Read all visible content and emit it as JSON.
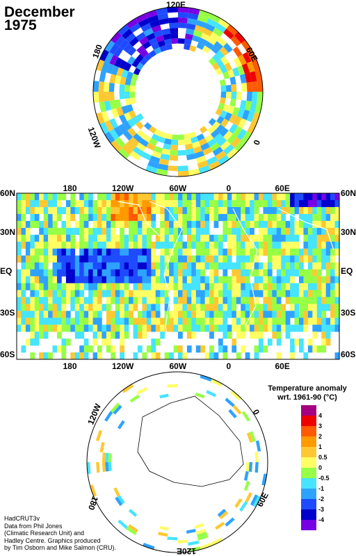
{
  "title": {
    "line1": "December",
    "line2": "1975"
  },
  "north_polar": {
    "labels": [
      "120E",
      "60E",
      "0",
      "120W",
      "180"
    ]
  },
  "equirect": {
    "top_lon_labels": [
      "180",
      "120W",
      "60W",
      "0",
      "60E"
    ],
    "bottom_lon_labels": [
      "180",
      "120W",
      "60W",
      "0",
      "60E"
    ],
    "left_lat_labels": [
      "60N",
      "30N",
      "EQ",
      "30S",
      "60S"
    ],
    "right_lat_labels": [
      "60N",
      "30N",
      "EQ",
      "30S",
      "60S"
    ]
  },
  "south_polar": {
    "labels": [
      "120W",
      "0",
      "60E",
      "120E",
      "180"
    ]
  },
  "legend": {
    "title_line1": "Temperature anomaly",
    "title_line2": "wrt. 1961-90  (°C)",
    "colors": [
      "#a5007f",
      "#ef0000",
      "#ff5a00",
      "#ff9a00",
      "#ffc832",
      "#ffff63",
      "#96ff46",
      "#46e4ff",
      "#2ea2ff",
      "#1e4bff",
      "#0000cd",
      "#7800e4"
    ],
    "labels": [
      "4",
      "3",
      "2",
      "1",
      "0.5",
      "0",
      "-0.5",
      "-1",
      "-2",
      "-3",
      "-4"
    ]
  },
  "credits": {
    "line1": "HadCRUT3v",
    "line2": "Data from Phil Jones",
    "line3": "(Climatic Research Unit) and",
    "line4": "Hadley Centre.  Graphics produced",
    "line5": "by Tim Osborn and Mike Salmon (CRU)."
  }
}
